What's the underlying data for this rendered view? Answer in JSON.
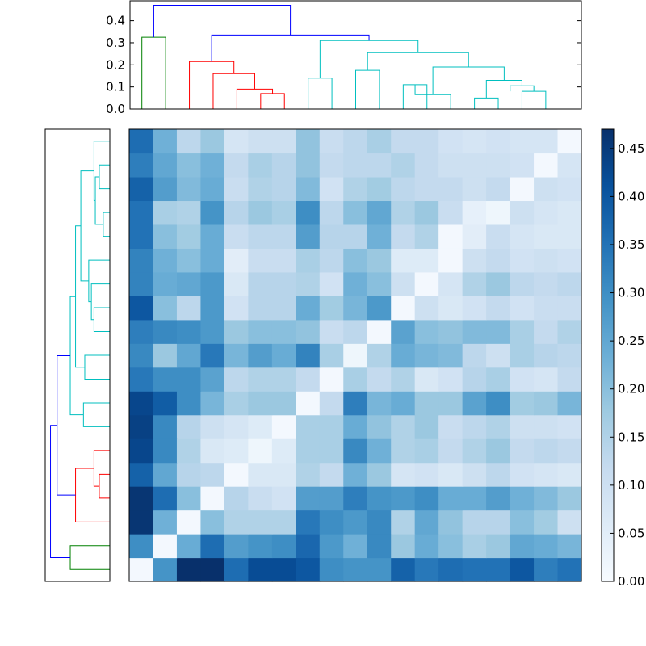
{
  "chart_data": [
    {
      "type": "heatmap",
      "title": "",
      "xlabel": "",
      "ylabel": "",
      "colormap": "Blues",
      "value_range": [
        0.0,
        0.47
      ],
      "row_order": "bottom-to-top",
      "values": [
        [
          0.01,
          0.29,
          0.47,
          0.47,
          0.36,
          0.42,
          0.42,
          0.4,
          0.3,
          0.29,
          0.29,
          0.38,
          0.34,
          0.36,
          0.35,
          0.35,
          0.4,
          0.33,
          0.35
        ],
        [
          0.3,
          0.01,
          0.24,
          0.36,
          0.27,
          0.29,
          0.3,
          0.37,
          0.28,
          0.23,
          0.31,
          0.18,
          0.24,
          0.2,
          0.16,
          0.18,
          0.25,
          0.24,
          0.22
        ],
        [
          0.46,
          0.23,
          0.01,
          0.2,
          0.15,
          0.15,
          0.15,
          0.34,
          0.3,
          0.28,
          0.31,
          0.15,
          0.25,
          0.19,
          0.14,
          0.14,
          0.2,
          0.17,
          0.1
        ],
        [
          0.46,
          0.36,
          0.2,
          0.01,
          0.14,
          0.11,
          0.09,
          0.27,
          0.27,
          0.33,
          0.29,
          0.28,
          0.3,
          0.24,
          0.24,
          0.27,
          0.23,
          0.21,
          0.18
        ],
        [
          0.38,
          0.25,
          0.14,
          0.13,
          0.01,
          0.07,
          0.07,
          0.15,
          0.12,
          0.23,
          0.18,
          0.08,
          0.09,
          0.07,
          0.1,
          0.13,
          0.09,
          0.08,
          0.07
        ],
        [
          0.43,
          0.31,
          0.15,
          0.07,
          0.06,
          0.02,
          0.06,
          0.16,
          0.16,
          0.31,
          0.23,
          0.15,
          0.16,
          0.12,
          0.15,
          0.18,
          0.12,
          0.13,
          0.12
        ],
        [
          0.44,
          0.31,
          0.14,
          0.1,
          0.08,
          0.06,
          0.01,
          0.16,
          0.16,
          0.24,
          0.19,
          0.15,
          0.18,
          0.11,
          0.13,
          0.15,
          0.1,
          0.1,
          0.09
        ],
        [
          0.43,
          0.39,
          0.3,
          0.22,
          0.16,
          0.18,
          0.18,
          0.01,
          0.12,
          0.33,
          0.22,
          0.24,
          0.18,
          0.18,
          0.26,
          0.3,
          0.17,
          0.18,
          0.22
        ],
        [
          0.34,
          0.3,
          0.3,
          0.26,
          0.13,
          0.15,
          0.15,
          0.12,
          0.01,
          0.16,
          0.12,
          0.15,
          0.07,
          0.09,
          0.14,
          0.16,
          0.09,
          0.08,
          0.12
        ],
        [
          0.31,
          0.18,
          0.25,
          0.34,
          0.22,
          0.27,
          0.24,
          0.32,
          0.16,
          0.02,
          0.15,
          0.24,
          0.22,
          0.21,
          0.13,
          0.1,
          0.16,
          0.14,
          0.13
        ],
        [
          0.33,
          0.31,
          0.3,
          0.28,
          0.18,
          0.2,
          0.2,
          0.19,
          0.11,
          0.13,
          0.01,
          0.26,
          0.2,
          0.19,
          0.21,
          0.21,
          0.16,
          0.12,
          0.15
        ],
        [
          0.4,
          0.2,
          0.13,
          0.28,
          0.09,
          0.14,
          0.14,
          0.24,
          0.17,
          0.22,
          0.28,
          0.01,
          0.1,
          0.07,
          0.09,
          0.12,
          0.09,
          0.11,
          0.11
        ],
        [
          0.32,
          0.24,
          0.25,
          0.28,
          0.07,
          0.14,
          0.14,
          0.15,
          0.09,
          0.23,
          0.2,
          0.1,
          0.01,
          0.08,
          0.15,
          0.18,
          0.13,
          0.12,
          0.13
        ],
        [
          0.32,
          0.23,
          0.2,
          0.24,
          0.05,
          0.11,
          0.11,
          0.16,
          0.13,
          0.2,
          0.18,
          0.06,
          0.06,
          0.01,
          0.1,
          0.12,
          0.09,
          0.1,
          0.09
        ],
        [
          0.35,
          0.2,
          0.17,
          0.24,
          0.11,
          0.13,
          0.13,
          0.27,
          0.14,
          0.14,
          0.23,
          0.12,
          0.15,
          0.01,
          0.05,
          0.11,
          0.08,
          0.07,
          0.07
        ],
        [
          0.35,
          0.16,
          0.15,
          0.29,
          0.14,
          0.18,
          0.16,
          0.3,
          0.13,
          0.2,
          0.25,
          0.15,
          0.18,
          0.11,
          0.04,
          0.02,
          0.1,
          0.08,
          0.07
        ],
        [
          0.38,
          0.27,
          0.21,
          0.24,
          0.11,
          0.15,
          0.14,
          0.21,
          0.09,
          0.15,
          0.17,
          0.13,
          0.12,
          0.12,
          0.1,
          0.12,
          0.01,
          0.1,
          0.09
        ],
        [
          0.33,
          0.25,
          0.2,
          0.23,
          0.12,
          0.16,
          0.14,
          0.19,
          0.12,
          0.13,
          0.13,
          0.15,
          0.12,
          0.1,
          0.1,
          0.1,
          0.09,
          0.01,
          0.08
        ],
        [
          0.36,
          0.23,
          0.13,
          0.18,
          0.08,
          0.1,
          0.1,
          0.19,
          0.11,
          0.13,
          0.16,
          0.12,
          0.12,
          0.09,
          0.08,
          0.09,
          0.08,
          0.08,
          0.01
        ]
      ],
      "colorbar": {
        "ticks": [
          0.0,
          0.05,
          0.1,
          0.15,
          0.2,
          0.25,
          0.3,
          0.35,
          0.4,
          0.45
        ],
        "tick_labels": [
          "0.00",
          "0.05",
          "0.10",
          "0.15",
          "0.20",
          "0.25",
          "0.30",
          "0.35",
          "0.40",
          "0.45"
        ]
      }
    },
    {
      "type": "dendrogram",
      "orientation": "top",
      "ylim": [
        0,
        0.49
      ],
      "yticks": [
        0.0,
        0.1,
        0.2,
        0.3,
        0.4
      ],
      "ytick_labels": [
        "0.0",
        "0.1",
        "0.2",
        "0.3",
        "0.4"
      ],
      "links": [
        {
          "xl": 0.5,
          "xr": 1.5,
          "hl": 0.0,
          "hr": 0.0,
          "h": 0.325,
          "color": "#008000"
        },
        {
          "xl": 5.5,
          "xr": 6.5,
          "hl": 0.0,
          "hr": 0.0,
          "h": 0.07,
          "color": "#ff0000"
        },
        {
          "xl": 4.5,
          "xr": 6.0,
          "hl": 0.0,
          "hr": 0.07,
          "h": 0.09,
          "color": "#ff0000"
        },
        {
          "xl": 3.5,
          "xr": 5.25,
          "hl": 0.0,
          "hr": 0.09,
          "h": 0.16,
          "color": "#ff0000"
        },
        {
          "xl": 2.5,
          "xr": 4.375,
          "hl": 0.0,
          "hr": 0.16,
          "h": 0.215,
          "color": "#ff0000"
        },
        {
          "xl": 7.5,
          "xr": 8.5,
          "hl": 0.0,
          "hr": 0.0,
          "h": 0.14,
          "color": "#00bfbf"
        },
        {
          "xl": 9.5,
          "xr": 10.5,
          "hl": 0.0,
          "hr": 0.0,
          "h": 0.175,
          "color": "#00bfbf"
        },
        {
          "xl": 11.5,
          "xr": 12.5,
          "hl": 0.0,
          "hr": 0.0,
          "h": 0.11,
          "color": "#00bfbf"
        },
        {
          "xl": 12.0,
          "xr": 13.5,
          "hl": 0.11,
          "hr": 0.0,
          "h": 0.065,
          "color": "#00bfbf"
        },
        {
          "xl": 14.5,
          "xr": 15.5,
          "hl": 0.0,
          "hr": 0.0,
          "h": 0.05,
          "color": "#00bfbf"
        },
        {
          "xl": 16.5,
          "xr": 17.5,
          "hl": 0.0,
          "hr": 0.0,
          "h": 0.08,
          "color": "#00bfbf"
        },
        {
          "xl": 16.0,
          "xr": 17.0,
          "hl": 0.08,
          "hr": 0.08,
          "h": 0.105,
          "color": "#00bfbf"
        },
        {
          "xl": 15.0,
          "xr": 16.5,
          "hl": 0.05,
          "hr": 0.105,
          "h": 0.13,
          "color": "#00bfbf"
        },
        {
          "xl": 12.75,
          "xr": 15.75,
          "hl": 0.065,
          "hr": 0.13,
          "h": 0.19,
          "color": "#00bfbf"
        },
        {
          "xl": 10.0,
          "xr": 14.25,
          "hl": 0.175,
          "hr": 0.19,
          "h": 0.255,
          "color": "#00bfbf"
        },
        {
          "xl": 8.0,
          "xr": 12.125,
          "hl": 0.14,
          "hr": 0.255,
          "h": 0.31,
          "color": "#00bfbf"
        },
        {
          "xl": 3.4375,
          "xr": 10.0625,
          "hl": 0.215,
          "hr": 0.31,
          "h": 0.335,
          "color": "#0000ff"
        },
        {
          "xl": 1.0,
          "xr": 6.75,
          "hl": 0.325,
          "hr": 0.335,
          "h": 0.47,
          "color": "#0000ff"
        }
      ]
    },
    {
      "type": "dendrogram",
      "orientation": "left",
      "ylim": [
        0,
        0.49
      ],
      "links": [
        {
          "xl": 0.5,
          "xr": 1.5,
          "hl": 0.0,
          "hr": 0.0,
          "h": 0.3,
          "color": "#008000"
        },
        {
          "xl": 3.5,
          "xr": 4.5,
          "hl": 0.0,
          "hr": 0.0,
          "h": 0.08,
          "color": "#ff0000"
        },
        {
          "xl": 4.0,
          "xr": 5.5,
          "hl": 0.08,
          "hr": 0.0,
          "h": 0.12,
          "color": "#ff0000"
        },
        {
          "xl": 2.5,
          "xr": 4.75,
          "hl": 0.0,
          "hr": 0.12,
          "h": 0.26,
          "color": "#ff0000"
        },
        {
          "xl": 6.5,
          "xr": 7.5,
          "hl": 0.0,
          "hr": 0.0,
          "h": 0.2,
          "color": "#00bfbf"
        },
        {
          "xl": 8.5,
          "xr": 9.5,
          "hl": 0.0,
          "hr": 0.0,
          "h": 0.19,
          "color": "#00bfbf"
        },
        {
          "xl": 10.5,
          "xr": 11.5,
          "hl": 0.0,
          "hr": 0.0,
          "h": 0.12,
          "color": "#00bfbf"
        },
        {
          "xl": 11.0,
          "xr": 12.5,
          "hl": 0.12,
          "hr": 0.0,
          "h": 0.14,
          "color": "#00bfbf"
        },
        {
          "xl": 11.75,
          "xr": 13.5,
          "hl": 0.14,
          "hr": 0.0,
          "h": 0.16,
          "color": "#00bfbf"
        },
        {
          "xl": 14.5,
          "xr": 15.5,
          "hl": 0.0,
          "hr": 0.0,
          "h": 0.05,
          "color": "#00bfbf"
        },
        {
          "xl": 16.5,
          "xr": 17.5,
          "hl": 0.0,
          "hr": 0.0,
          "h": 0.08,
          "color": "#00bfbf"
        },
        {
          "xl": 15.0,
          "xr": 17.0,
          "hl": 0.05,
          "hr": 0.08,
          "h": 0.11,
          "color": "#00bfbf"
        },
        {
          "xl": 16.0,
          "xr": 18.5,
          "hl": 0.11,
          "hr": 0.0,
          "h": 0.12,
          "color": "#00bfbf"
        },
        {
          "xl": 12.625,
          "xr": 17.25,
          "hl": 0.16,
          "hr": 0.12,
          "h": 0.22,
          "color": "#00bfbf"
        },
        {
          "xl": 9.0,
          "xr": 14.9375,
          "hl": 0.19,
          "hr": 0.22,
          "h": 0.26,
          "color": "#00bfbf"
        },
        {
          "xl": 7.0,
          "xr": 11.96875,
          "hl": 0.2,
          "hr": 0.26,
          "h": 0.3,
          "color": "#00bfbf"
        },
        {
          "xl": 3.625,
          "xr": 9.484375,
          "hl": 0.26,
          "hr": 0.3,
          "h": 0.4,
          "color": "#0000ff"
        },
        {
          "xl": 1.0,
          "xr": 6.5546875,
          "hl": 0.3,
          "hr": 0.4,
          "h": 0.45,
          "color": "#0000ff"
        }
      ]
    }
  ]
}
